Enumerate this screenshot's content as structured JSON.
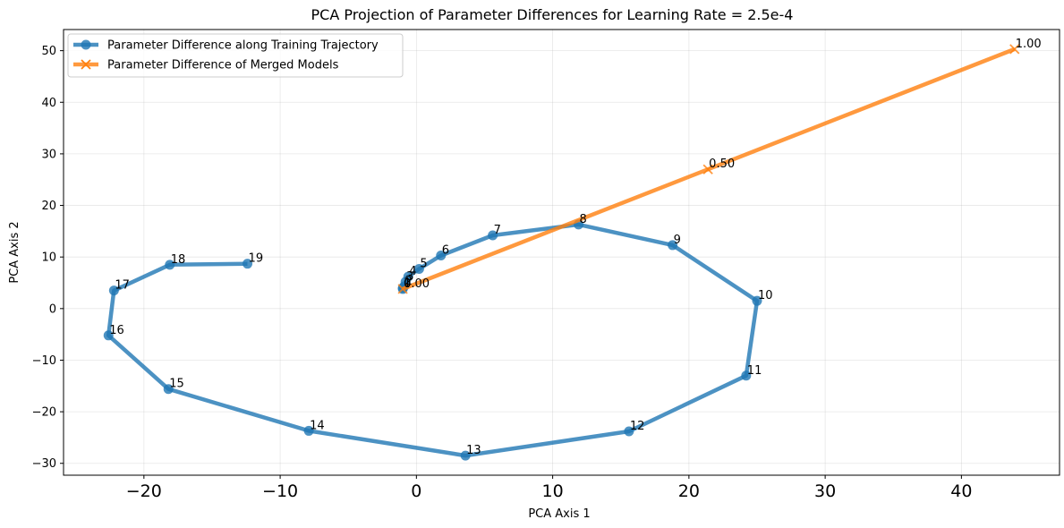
{
  "chart_data": {
    "type": "line",
    "title": "PCA Projection of Parameter Differences for Learning Rate = 2.5e-4",
    "xlabel": "PCA Axis 1",
    "ylabel": "PCA Axis 2",
    "xlim": [
      -25.9,
      47.2
    ],
    "ylim": [
      -32.3,
      54.1
    ],
    "xticks": [
      -20,
      -10,
      0,
      10,
      20,
      30,
      40
    ],
    "xtick_labels": [
      "−20",
      "−10",
      "0",
      "10",
      "20",
      "30",
      "40"
    ],
    "yticks": [
      -30,
      -20,
      -10,
      0,
      10,
      20,
      30,
      40,
      50
    ],
    "ytick_labels": [
      "−30",
      "−20",
      "−10",
      "0",
      "10",
      "20",
      "30",
      "40",
      "50"
    ],
    "grid": true,
    "legend_position": "top-left",
    "series": [
      {
        "name": "Parameter Difference along Training Trajectory",
        "color": "#1f77b4",
        "marker": "circle",
        "points": [
          {
            "label": "0",
            "x": -1.0,
            "y": 3.8
          },
          {
            "label": "1",
            "x": -1.0,
            "y": 4.0
          },
          {
            "label": "2",
            "x": -0.9,
            "y": 4.3
          },
          {
            "label": "3",
            "x": -0.8,
            "y": 5.2
          },
          {
            "label": "4",
            "x": -0.6,
            "y": 6.2
          },
          {
            "label": "5",
            "x": 0.2,
            "y": 7.7
          },
          {
            "label": "6",
            "x": 1.8,
            "y": 10.3
          },
          {
            "label": "7",
            "x": 5.6,
            "y": 14.2
          },
          {
            "label": "8",
            "x": 11.9,
            "y": 16.3
          },
          {
            "label": "9",
            "x": 18.8,
            "y": 12.3
          },
          {
            "label": "10",
            "x": 25.0,
            "y": 1.5
          },
          {
            "label": "11",
            "x": 24.2,
            "y": -13.0
          },
          {
            "label": "12",
            "x": 15.6,
            "y": -23.8
          },
          {
            "label": "13",
            "x": 3.6,
            "y": -28.5
          },
          {
            "label": "14",
            "x": -7.9,
            "y": -23.7
          },
          {
            "label": "15",
            "x": -18.2,
            "y": -15.6
          },
          {
            "label": "16",
            "x": -22.6,
            "y": -5.2
          },
          {
            "label": "17",
            "x": -22.2,
            "y": 3.5
          },
          {
            "label": "18",
            "x": -18.1,
            "y": 8.5
          },
          {
            "label": "19",
            "x": -12.4,
            "y": 8.7
          }
        ]
      },
      {
        "name": "Parameter Difference of Merged Models",
        "color": "#ff7f0e",
        "marker": "x",
        "points": [
          {
            "label": "0.00",
            "x": -1.0,
            "y": 3.8
          },
          {
            "label": "0.50",
            "x": 21.4,
            "y": 27.0
          },
          {
            "label": "1.00",
            "x": 43.9,
            "y": 50.3
          }
        ]
      }
    ]
  }
}
